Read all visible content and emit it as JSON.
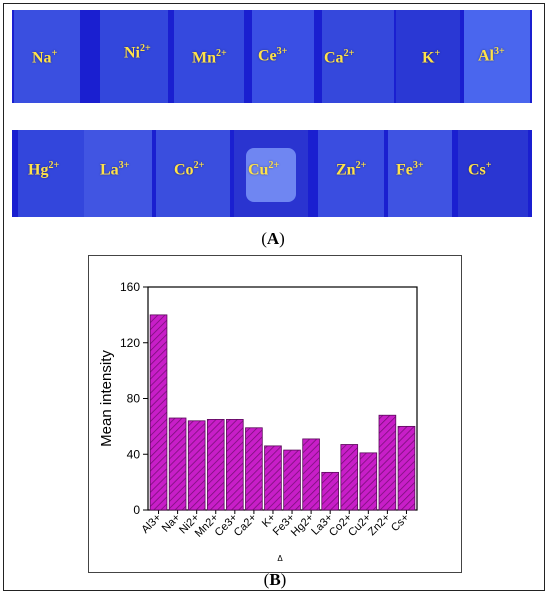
{
  "panel_a": {
    "label": "A",
    "top_row": [
      {
        "base": "Na",
        "charge": "+"
      },
      {
        "base": "Ni",
        "charge": "2+"
      },
      {
        "base": "Mn",
        "charge": "2+"
      },
      {
        "base": "Ce",
        "charge": "3+"
      },
      {
        "base": "Ca",
        "charge": "2+"
      },
      {
        "base": "K",
        "charge": "+"
      },
      {
        "base": "Al",
        "charge": "3+"
      }
    ],
    "bottom_row": [
      {
        "base": "Hg",
        "charge": "2+"
      },
      {
        "base": "La",
        "charge": "3+"
      },
      {
        "base": "Co",
        "charge": "2+"
      },
      {
        "base": "Cu",
        "charge": "2+"
      },
      {
        "base": "Zn",
        "charge": "2+"
      },
      {
        "base": "Fe",
        "charge": "3+"
      },
      {
        "base": "Cs",
        "charge": "+"
      }
    ]
  },
  "panel_b": {
    "label": "B",
    "small_mark": "Δ"
  },
  "colors": {
    "bar_fill": "#c81ec8",
    "bar_hatch": "#7a0f7a",
    "photo_bg": "#1a1fd0",
    "ion_text": "#ffe24a"
  },
  "chart_data": {
    "type": "bar",
    "categories": [
      "Al3+",
      "Na+",
      "Ni2+",
      "Mn2+",
      "Ce3+",
      "Ca2+",
      "K+",
      "Fe3+",
      "Hg2+",
      "La3+",
      "Co2+",
      "Cu2+",
      "Zn2+",
      "Cs+"
    ],
    "values": [
      140,
      66,
      64,
      65,
      65,
      59,
      46,
      43,
      51,
      27,
      47,
      41,
      68,
      60
    ],
    "title": "",
    "xlabel": "",
    "ylabel": "Mean intensity",
    "ylim": [
      0,
      160
    ],
    "yticks": [
      0,
      40,
      80,
      120,
      160
    ],
    "grid": false,
    "legend": "none"
  }
}
